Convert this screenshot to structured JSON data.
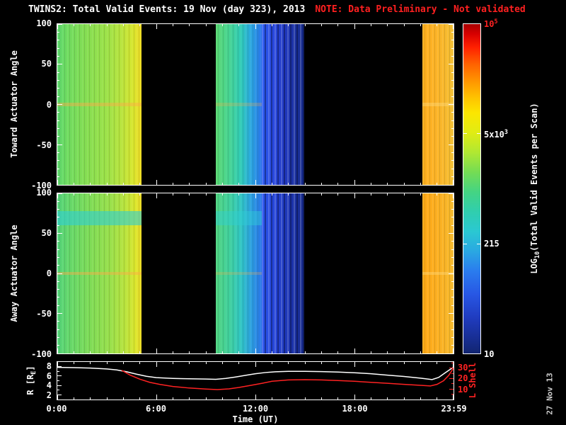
{
  "title": {
    "main": "TWINS2: Total Valid Events: 19 Nov (day 323), 2013",
    "note": "NOTE: Data Preliminary - Not validated",
    "note_color": "#ff2020"
  },
  "watermark": "27 Nov 13",
  "x_axis": {
    "label": "Time (UT)",
    "range": [
      0,
      24
    ],
    "ticks": [
      {
        "h": 0,
        "label": "0:00"
      },
      {
        "h": 6,
        "label": "6:00"
      },
      {
        "h": 12,
        "label": "12:00"
      },
      {
        "h": 18,
        "label": "18:00"
      },
      {
        "h": 23.983,
        "label": "23:59"
      }
    ]
  },
  "panels": [
    {
      "y_label": "Toward Actuator Angle",
      "y_range": [
        -100,
        100
      ],
      "y_ticks": [
        100,
        50,
        0,
        -50,
        -100
      ]
    },
    {
      "y_label": "Away Actuator Angle",
      "y_range": [
        -100,
        100
      ],
      "y_ticks": [
        100,
        50,
        0,
        -50,
        -100
      ]
    }
  ],
  "bottom_panel": {
    "left_label_pre": "R [R",
    "left_label_sub": "E",
    "left_label_post": "]",
    "left_range": [
      1,
      9
    ],
    "left_ticks": [
      8,
      6,
      4,
      2
    ],
    "right_label": "L Shell",
    "right_range": [
      0,
      36
    ],
    "right_ticks": [
      30,
      20,
      10
    ],
    "right_color": "#ff2222"
  },
  "colorbar": {
    "label_pre": "LOG",
    "label_sub": "10",
    "label_post": "(Total Valid Events per Scan)",
    "ticks": [
      {
        "pre": "10",
        "sup": "5",
        "pos": 0,
        "color": "#ff2222"
      },
      {
        "pre": "5x10",
        "sup": "3",
        "pos": 0.3333,
        "color": "#ffffff"
      },
      {
        "pre": "215",
        "sup": "",
        "pos": 0.6667,
        "color": "#ffffff"
      },
      {
        "pre": "10",
        "sup": "",
        "pos": 1,
        "color": "#ffffff"
      }
    ],
    "gradient": [
      [
        0,
        "#a80000"
      ],
      [
        0.03,
        "#d80000"
      ],
      [
        0.07,
        "#ff2000"
      ],
      [
        0.12,
        "#ff6000"
      ],
      [
        0.17,
        "#ff9200"
      ],
      [
        0.22,
        "#ffc000"
      ],
      [
        0.27,
        "#fce600"
      ],
      [
        0.33,
        "#e0ec14"
      ],
      [
        0.39,
        "#b0e832"
      ],
      [
        0.45,
        "#74dc54"
      ],
      [
        0.51,
        "#44d483"
      ],
      [
        0.57,
        "#30ceae"
      ],
      [
        0.63,
        "#2ac8d2"
      ],
      [
        0.69,
        "#2aa8e2"
      ],
      [
        0.75,
        "#2a7cee"
      ],
      [
        0.82,
        "#2857e4"
      ],
      [
        0.89,
        "#203cc0"
      ],
      [
        0.95,
        "#182f96"
      ],
      [
        1,
        "#122570"
      ]
    ]
  },
  "chart_data": [
    {
      "id": "toward_heatmap",
      "type": "heatmap",
      "title": "Toward Actuator Angle spectrogram",
      "x_range": [
        0,
        24
      ],
      "x_unit": "hours UT",
      "y_range": [
        -100,
        100
      ],
      "y_unit": "degrees",
      "value_label": "log10(Total Valid Events per Scan)",
      "segments": [
        {
          "t0": 0,
          "t1": 5.1,
          "log10_value_range": [
            3.5,
            3.8
          ],
          "stripes": "soft",
          "stops": [
            [
              0,
              "#5ed86e"
            ],
            [
              0.12,
              "#70dc60"
            ],
            [
              0.35,
              "#86de52"
            ],
            [
              0.6,
              "#9ee248"
            ],
            [
              0.78,
              "#bce43c"
            ],
            [
              0.9,
              "#d8e62e"
            ],
            [
              1,
              "#f0dc26"
            ]
          ]
        },
        {
          "t0": 9.6,
          "t1": 12.4,
          "log10_value_range": [
            2.4,
            3.5
          ],
          "stripes": "soft",
          "stops": [
            [
              0,
              "#5ad872"
            ],
            [
              0.3,
              "#46d494"
            ],
            [
              0.55,
              "#30ccb8"
            ],
            [
              0.75,
              "#2caade"
            ],
            [
              0.9,
              "#2a8ce6"
            ],
            [
              1,
              "#2a70ea"
            ]
          ]
        },
        {
          "t0": 12.4,
          "t1": 14.95,
          "log10_value_range": [
            1.4,
            2.2
          ],
          "stripes": "strong",
          "stops": [
            [
              0,
              "#2a5af0"
            ],
            [
              0.3,
              "#2846dc"
            ],
            [
              0.55,
              "#2038c0"
            ],
            [
              0.8,
              "#1a309e"
            ],
            [
              1,
              "#15298a"
            ]
          ]
        },
        {
          "t0": 22.1,
          "t1": 24,
          "log10_value_range": [
            4.2,
            4.4
          ],
          "stripes": "soft",
          "stops": [
            [
              0,
              "#ffae1e"
            ],
            [
              0.45,
              "#fcb428"
            ],
            [
              0.75,
              "#f8ba2e"
            ],
            [
              1,
              "#f2c034"
            ]
          ]
        }
      ],
      "bands": [
        {
          "t0": 0,
          "t1": 5.1,
          "a0": -2,
          "a1": 2,
          "color": "rgba(255,170,70,0.45)"
        },
        {
          "t0": 9.6,
          "t1": 12.4,
          "a0": -2,
          "a1": 2,
          "color": "rgba(255,170,70,0.25)"
        },
        {
          "t0": 22.1,
          "t1": 24,
          "a0": -2,
          "a1": 2,
          "color": "rgba(255,220,130,0.4)"
        }
      ]
    },
    {
      "id": "away_heatmap",
      "type": "heatmap",
      "title": "Away Actuator Angle spectrogram",
      "x_range": [
        0,
        24
      ],
      "x_unit": "hours UT",
      "y_range": [
        -100,
        100
      ],
      "y_unit": "degrees",
      "value_label": "log10(Total Valid Events per Scan)",
      "segments": [
        {
          "t0": 0,
          "t1": 5.1,
          "log10_value_range": [
            3.5,
            3.8
          ],
          "stripes": "soft",
          "stops": [
            [
              0,
              "#54d47a"
            ],
            [
              0.15,
              "#66d86a"
            ],
            [
              0.4,
              "#80dc56"
            ],
            [
              0.65,
              "#9ce04a"
            ],
            [
              0.82,
              "#bce43c"
            ],
            [
              0.93,
              "#dce62c"
            ],
            [
              1,
              "#ecda28"
            ]
          ]
        },
        {
          "t0": 9.6,
          "t1": 12.4,
          "log10_value_range": [
            2.4,
            3.5
          ],
          "stripes": "soft",
          "stops": [
            [
              0,
              "#50d480"
            ],
            [
              0.3,
              "#40d09e"
            ],
            [
              0.55,
              "#30c6c4"
            ],
            [
              0.78,
              "#2c9ee0"
            ],
            [
              1,
              "#2a74e8"
            ]
          ]
        },
        {
          "t0": 12.4,
          "t1": 14.95,
          "log10_value_range": [
            1.4,
            2.2
          ],
          "stripes": "strong",
          "stops": [
            [
              0,
              "#2a54ec"
            ],
            [
              0.35,
              "#2442d4"
            ],
            [
              0.65,
              "#1c34b2"
            ],
            [
              1,
              "#15298a"
            ]
          ]
        },
        {
          "t0": 22.1,
          "t1": 24,
          "log10_value_range": [
            4.25,
            4.45
          ],
          "stripes": "soft",
          "stops": [
            [
              0,
              "#ffa816"
            ],
            [
              0.5,
              "#fcb022"
            ],
            [
              1,
              "#f6ba2c"
            ]
          ]
        }
      ],
      "bands": [
        {
          "t0": 0,
          "t1": 5.1,
          "a0": 60,
          "a1": 78,
          "color": "rgba(46,206,212,0.6)"
        },
        {
          "t0": 9.6,
          "t1": 12.4,
          "a0": 60,
          "a1": 78,
          "color": "rgba(46,206,212,0.45)"
        },
        {
          "t0": 0,
          "t1": 5.1,
          "a0": -2,
          "a1": 2,
          "color": "rgba(255,170,70,0.45)"
        },
        {
          "t0": 9.6,
          "t1": 12.4,
          "a0": -2,
          "a1": 2,
          "color": "rgba(255,170,70,0.25)"
        },
        {
          "t0": 22.1,
          "t1": 24,
          "a0": -2,
          "a1": 2,
          "color": "rgba(255,220,130,0.4)"
        }
      ]
    },
    {
      "id": "orbit_lines",
      "type": "line",
      "title": "Spacecraft geocentric distance and L shell vs time",
      "x_range": [
        0,
        24
      ],
      "series": [
        {
          "name": "R [RE]",
          "axis": "left",
          "color": "#ffffff",
          "points": [
            [
              0,
              7.85
            ],
            [
              1,
              7.8
            ],
            [
              2,
              7.7
            ],
            [
              3,
              7.5
            ],
            [
              3.6,
              7.3
            ],
            [
              4.2,
              6.9
            ],
            [
              4.8,
              6.4
            ],
            [
              5.4,
              5.95
            ],
            [
              6,
              5.65
            ],
            [
              7,
              5.5
            ],
            [
              8,
              5.4
            ],
            [
              9,
              5.35
            ],
            [
              9.6,
              5.3
            ],
            [
              10.2,
              5.5
            ],
            [
              10.8,
              5.8
            ],
            [
              11.4,
              6.15
            ],
            [
              12,
              6.5
            ],
            [
              12.6,
              6.75
            ],
            [
              13.2,
              6.9
            ],
            [
              14,
              7.0
            ],
            [
              15,
              7.0
            ],
            [
              16,
              6.95
            ],
            [
              17,
              6.85
            ],
            [
              18,
              6.7
            ],
            [
              19,
              6.5
            ],
            [
              20,
              6.2
            ],
            [
              21,
              5.9
            ],
            [
              22,
              5.55
            ],
            [
              22.7,
              5.25
            ],
            [
              23.1,
              5.7
            ],
            [
              23.5,
              6.7
            ],
            [
              24,
              7.9
            ]
          ]
        },
        {
          "name": "L Shell",
          "axis": "right",
          "color": "#ff2222",
          "points": [
            [
              3.9,
              28
            ],
            [
              4.4,
              23.5
            ],
            [
              5,
              19.5
            ],
            [
              5.6,
              16.5
            ],
            [
              6.2,
              14.5
            ],
            [
              7,
              12.5
            ],
            [
              8,
              11
            ],
            [
              9,
              10
            ],
            [
              9.7,
              9.5
            ],
            [
              10.4,
              10.2
            ],
            [
              11,
              11.5
            ],
            [
              11.7,
              13.5
            ],
            [
              12.4,
              15.5
            ],
            [
              13,
              17.5
            ],
            [
              14,
              18.8
            ],
            [
              15,
              19
            ],
            [
              16,
              18.8
            ],
            [
              17,
              18.2
            ],
            [
              18,
              17.5
            ],
            [
              19,
              16.5
            ],
            [
              20,
              15.5
            ],
            [
              21,
              14.5
            ],
            [
              22,
              13.6
            ],
            [
              22.6,
              13
            ],
            [
              23,
              14.5
            ],
            [
              23.4,
              18
            ],
            [
              23.7,
              23
            ],
            [
              24,
              30
            ]
          ]
        }
      ]
    }
  ]
}
